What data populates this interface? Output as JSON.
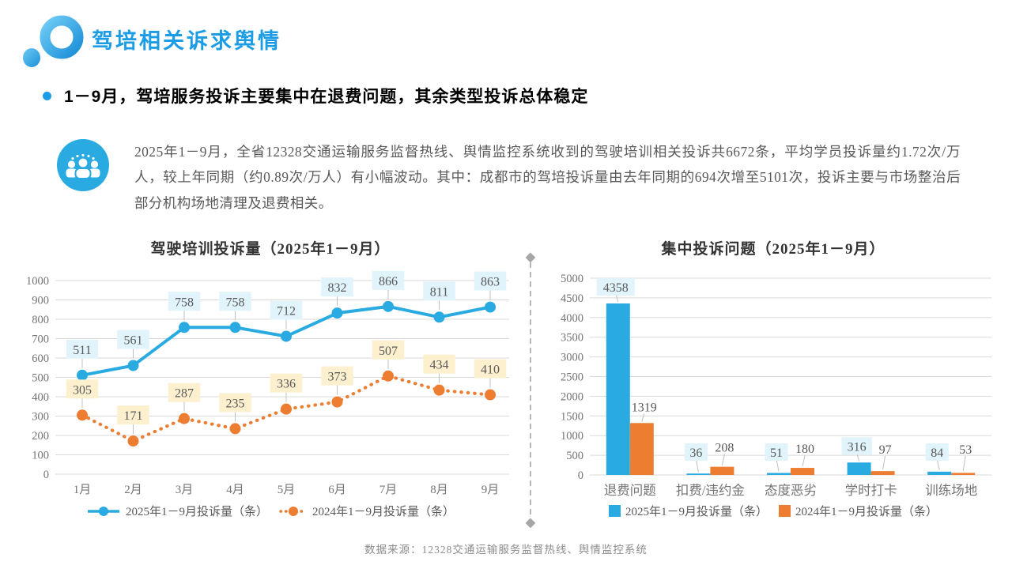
{
  "header": {
    "title": "驾培相关诉求舆情"
  },
  "headline": {
    "text": "1－9月，驾培服务投诉主要集中在退费问题，其余类型投诉总体稳定"
  },
  "summary": {
    "icon": "people-group-icon",
    "text": "2025年1－9月，全省12328交通运输服务监督热线、舆情监控系统收到的驾驶培训相关投诉共6672条，平均学员投诉量约1.72次/万人，较上年同期（约0.89次/万人）有小幅波动。其中：成都市的驾培投诉量由去年同期的694次增至5101次，投诉主要与市场整治后部分机构场地清理及退费相关。"
  },
  "colors": {
    "brand_blue": "#29abe2",
    "title_blue": "#1b9ce5",
    "series_2025": "#29abe2",
    "series_2024": "#ed7d31",
    "label_bg_blue": "#e1f3fb",
    "label_bg_yellow": "#fcf0cf",
    "gridline": "#d9d9d9",
    "axis_text": "#737373",
    "label_text": "#595959"
  },
  "chart_data": [
    {
      "type": "line",
      "title": "驾驶培训投诉量（2025年1－9月）",
      "categories": [
        "1月",
        "2月",
        "3月",
        "4月",
        "5月",
        "6月",
        "7月",
        "8月",
        "9月"
      ],
      "series": [
        {
          "name": "2025年1－9月投诉量（条）",
          "values": [
            511,
            561,
            758,
            758,
            712,
            832,
            866,
            811,
            863
          ],
          "color": "#29abe2",
          "style": "solid",
          "label_bg": "#e1f3fb"
        },
        {
          "name": "2024年1－9月投诉量（条）",
          "values": [
            305,
            171,
            287,
            235,
            336,
            373,
            507,
            434,
            410
          ],
          "color": "#ed7d31",
          "style": "dotted",
          "label_bg": "#fcf0cf"
        }
      ],
      "ylim": [
        0,
        1000
      ],
      "ytick": 100,
      "grid": true,
      "legend_position": "bottom"
    },
    {
      "type": "bar",
      "title": "集中投诉问题（2025年1－9月）",
      "categories": [
        "退费问题",
        "扣费/违约金",
        "态度恶劣",
        "学时打卡",
        "训练场地"
      ],
      "series": [
        {
          "name": "2025年1－9月投诉量（条）",
          "values": [
            4358,
            36,
            51,
            316,
            84
          ],
          "color": "#29abe2",
          "label_bg": "#e1f3fb"
        },
        {
          "name": "2024年1－9月投诉量（条）",
          "values": [
            1319,
            208,
            180,
            97,
            53
          ],
          "color": "#ed7d31",
          "label_bg": ""
        }
      ],
      "ylim": [
        0,
        5000
      ],
      "ytick": 500,
      "grid": true,
      "legend_position": "bottom"
    }
  ],
  "footer": {
    "source": "数据来源：12328交通运输服务监督热线、舆情监控系统"
  }
}
